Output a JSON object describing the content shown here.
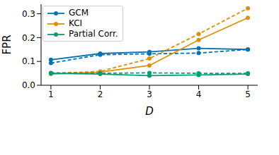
{
  "chart_data": {
    "type": "line",
    "xlabel": "D",
    "ylabel": "FPR",
    "x": [
      1,
      2,
      3,
      4,
      5
    ],
    "xlim": [
      0.8,
      5.2
    ],
    "xticks": [
      1,
      2,
      3,
      4,
      5
    ],
    "ylim": [
      0,
      0.34
    ],
    "yticks": [
      {
        "value": 0,
        "label": "0.0"
      },
      0.1,
      0.2,
      0.3
    ],
    "grid": false,
    "legend": "upper left",
    "series": [
      {
        "name": "GCM",
        "color": "#0173b2",
        "line_style": "solid",
        "marker": "circle",
        "values": [
          0.107,
          0.133,
          0.14,
          0.155,
          0.15
        ]
      },
      {
        "name": "GCM",
        "color": "#0173b2",
        "line_style": "dashed",
        "marker": "circle",
        "values": [
          0.093,
          0.128,
          0.132,
          0.135,
          0.15
        ]
      },
      {
        "name": "KCI",
        "color": "#de8f05",
        "line_style": "solid",
        "marker": "circle",
        "values": [
          0.047,
          0.055,
          0.083,
          0.19,
          0.283
        ]
      },
      {
        "name": "KCI",
        "color": "#de8f05",
        "line_style": "dashed",
        "marker": "circle",
        "values": [
          0.05,
          0.058,
          0.112,
          0.215,
          0.323
        ]
      },
      {
        "name": "Partial Corr.",
        "color": "#029e73",
        "line_style": "solid",
        "marker": "circle",
        "values": [
          0.05,
          0.047,
          0.04,
          0.043,
          0.047
        ]
      },
      {
        "name": "Partial Corr.",
        "color": "#029e73",
        "line_style": "dashed",
        "marker": "circle",
        "values": [
          0.052,
          0.05,
          0.052,
          0.05,
          0.05
        ]
      }
    ]
  }
}
